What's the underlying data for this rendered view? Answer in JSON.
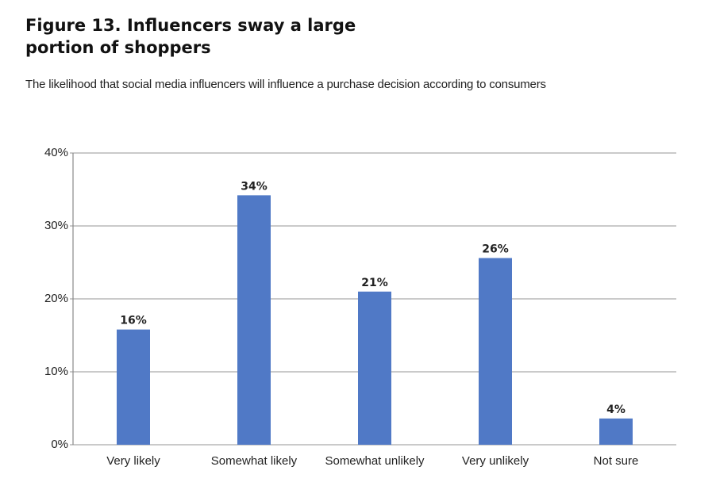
{
  "chart_data": {
    "type": "bar",
    "title": "Figure 13. Influencers sway a large portion of shoppers",
    "subtitle": "The likelihood that social media influencers will influence a purchase decision according to consumers",
    "categories": [
      "Very likely",
      "Somewhat likely",
      "Somewhat unlikely",
      "Very unlikely",
      "Not sure"
    ],
    "values": [
      15.8,
      34.2,
      21,
      25.6,
      3.6
    ],
    "value_labels": [
      "16%",
      "34%",
      "21%",
      "26%",
      "4%"
    ],
    "color": "#5079c6",
    "ylim": [
      0,
      40
    ],
    "yticks": [
      {
        "value": 0,
        "label": "0%"
      },
      {
        "value": 10,
        "label": "10%"
      },
      {
        "value": 20,
        "label": "20%"
      },
      {
        "value": 30,
        "label": "30%"
      },
      {
        "value": 40,
        "label": "40%"
      }
    ],
    "grid": true
  }
}
